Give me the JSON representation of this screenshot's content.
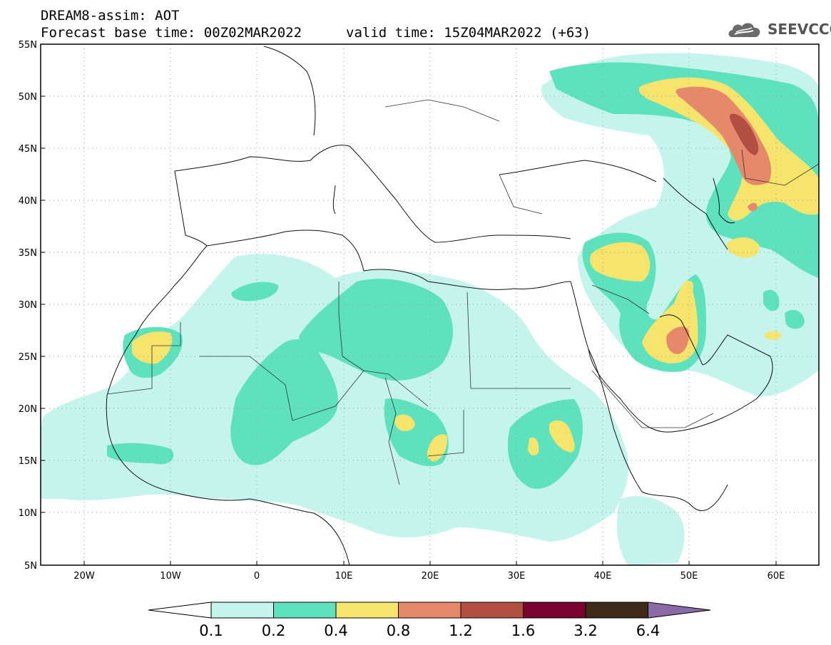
{
  "title": {
    "line1": "DREAM8-assim: AOT",
    "base_time": "Forecast base time: 00Z02MAR2022",
    "valid_time": "valid time: 15Z04MAR2022 (+63)"
  },
  "logo": {
    "text": "SEEVCCC",
    "icon": "cloud-logo-icon"
  },
  "axes": {
    "lat_labels": [
      "55N",
      "50N",
      "45N",
      "40N",
      "35N",
      "30N",
      "25N",
      "20N",
      "15N",
      "10N",
      "5N"
    ],
    "lon_labels": [
      "20W",
      "10W",
      "0",
      "10E",
      "20E",
      "30E",
      "40E",
      "50E",
      "60E"
    ],
    "lat_range": [
      5,
      55
    ],
    "lon_range": [
      -25,
      65
    ]
  },
  "legend": {
    "colors": [
      "#c4f4ec",
      "#5ee2bd",
      "#f7e46d",
      "#e6896a",
      "#b04f42",
      "#7a0230",
      "#3f2a18"
    ],
    "under_color": "#ffffff",
    "over_color": "#8a6ba8",
    "labels": [
      "0.1",
      "0.2",
      "0.4",
      "0.8",
      "1.2",
      "1.6",
      "3.2",
      "6.4"
    ]
  }
}
